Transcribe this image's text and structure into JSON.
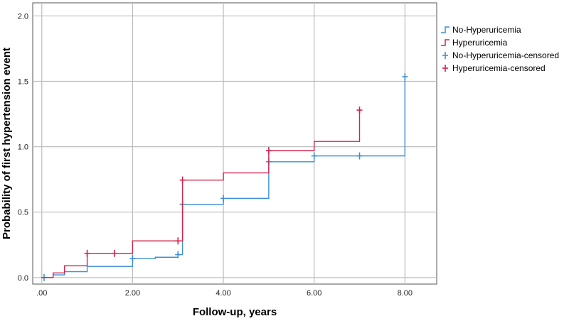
{
  "chart_data": {
    "type": "line",
    "subtype": "kaplan-meier-cumulative-incidence",
    "title": "",
    "xlabel": "Follow-up, years",
    "ylabel": "Probability of first hypertension event",
    "xlim": [
      -0.2,
      8.7
    ],
    "ylim": [
      -0.05,
      2.1
    ],
    "x_ticks": [
      0,
      2,
      4,
      6,
      8
    ],
    "x_tick_labels": [
      ".00",
      "2.00",
      "4.00",
      "6.00",
      "8.00"
    ],
    "y_ticks": [
      0,
      0.5,
      1,
      1.5,
      2
    ],
    "y_tick_labels": [
      "0.0",
      "0.5",
      "1.0",
      "1.5",
      "2.0"
    ],
    "grid": true,
    "legend_position": "top-right",
    "legend": [
      {
        "label": "No-Hyperuricemia",
        "kind": "step",
        "color": "#3d8fd6"
      },
      {
        "label": "Hyperuricemia",
        "kind": "step",
        "color": "#d2244a"
      },
      {
        "label": "No-Hyperuricemia-censored",
        "kind": "censor",
        "color": "#3d8fd6"
      },
      {
        "label": "Hyperuricemia-censored",
        "kind": "censor",
        "color": "#d2244a"
      }
    ],
    "series": [
      {
        "name": "No-Hyperuricemia",
        "color": "#3d8fd6",
        "x": [
          0,
          0.25,
          0.5,
          1.0,
          2.0,
          2.5,
          3.0,
          3.1,
          4.0,
          5.0,
          6.0,
          8.0
        ],
        "y": [
          0.0,
          0.02,
          0.045,
          0.085,
          0.145,
          0.155,
          0.175,
          0.56,
          0.605,
          0.885,
          0.93,
          1.535
        ],
        "end_x": 8.0,
        "censored": [
          {
            "x": 0.05,
            "y": 0.0
          },
          {
            "x": 2.0,
            "y": 0.145
          },
          {
            "x": 3.0,
            "y": 0.175
          },
          {
            "x": 3.1,
            "y": 0.56
          },
          {
            "x": 4.0,
            "y": 0.605
          },
          {
            "x": 5.0,
            "y": 0.885
          },
          {
            "x": 6.0,
            "y": 0.93
          },
          {
            "x": 7.0,
            "y": 0.93
          },
          {
            "x": 8.0,
            "y": 1.535
          }
        ]
      },
      {
        "name": "Hyperuricemia",
        "color": "#d2244a",
        "x": [
          0,
          0.25,
          0.5,
          1.0,
          2.0,
          3.1,
          4.0,
          5.0,
          6.0,
          7.0
        ],
        "y": [
          0.0,
          0.035,
          0.09,
          0.185,
          0.28,
          0.745,
          0.8,
          0.97,
          1.04,
          1.28
        ],
        "end_x": 7.0,
        "censored": [
          {
            "x": 1.0,
            "y": 0.185
          },
          {
            "x": 1.6,
            "y": 0.185
          },
          {
            "x": 3.0,
            "y": 0.28
          },
          {
            "x": 3.1,
            "y": 0.745
          },
          {
            "x": 5.0,
            "y": 0.97
          },
          {
            "x": 7.0,
            "y": 1.28
          }
        ]
      }
    ]
  }
}
